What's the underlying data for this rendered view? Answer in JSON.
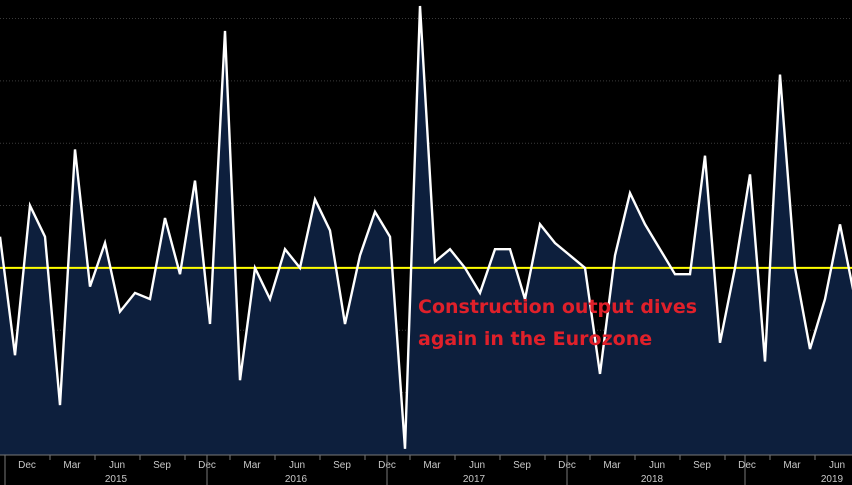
{
  "chart_data": {
    "type": "area",
    "series_color": "#ffffff",
    "fill_color": "#0d1f3d",
    "reference_line": {
      "value": 0.0,
      "color": "#ffff00"
    },
    "grid": "horizontal dotted",
    "y_range": [
      -3.0,
      4.2
    ],
    "x_tick_labels": [
      "Dec",
      "Mar",
      "Jun",
      "Sep",
      "Dec",
      "Mar",
      "Jun",
      "Sep",
      "Dec",
      "Mar",
      "Jun",
      "Sep",
      "Dec",
      "Mar",
      "Jun",
      "Sep",
      "Dec",
      "Mar",
      "Jun"
    ],
    "year_labels": [
      "2015",
      "2016",
      "2017",
      "2018",
      "2019"
    ],
    "values": [
      0.5,
      -1.4,
      1.0,
      0.5,
      -2.2,
      1.9,
      -0.3,
      0.4,
      -0.7,
      -0.4,
      -0.5,
      0.8,
      -0.1,
      1.4,
      -0.9,
      3.8,
      -1.8,
      0.0,
      -0.5,
      0.3,
      0.0,
      1.1,
      0.6,
      -0.9,
      0.2,
      0.9,
      0.5,
      -2.9,
      4.2,
      0.1,
      0.3,
      0.0,
      -0.4,
      0.3,
      0.3,
      -0.5,
      0.7,
      0.4,
      0.2,
      0.0,
      -1.7,
      0.2,
      1.2,
      0.7,
      0.3,
      -0.1,
      -0.1,
      1.8,
      -1.2,
      0.0,
      1.5,
      -1.5,
      3.1,
      0.0,
      -1.3,
      -0.5,
      0.7,
      -0.5
    ]
  },
  "annotation": {
    "line1": "Construction output dives",
    "line2": "again in the Eurozone"
  }
}
